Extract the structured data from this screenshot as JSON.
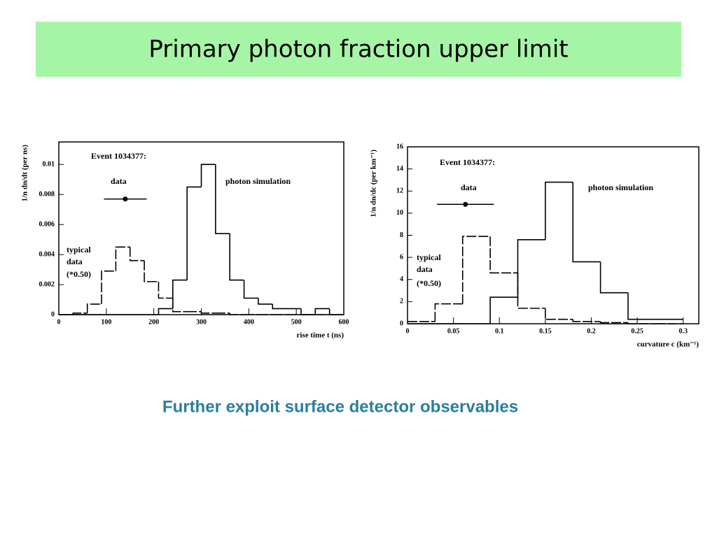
{
  "slide": {
    "title": "Primary photon fraction upper limit",
    "footer": "Further exploit surface detector observables"
  },
  "chart_data": [
    {
      "type": "histogram",
      "xlabel": "rise time t (ns)",
      "ylabel": "1/n dn/dt (per ns)",
      "annotations": [
        "Event 1034377:",
        "data",
        "photon simulation",
        "typical",
        "data",
        "(*0.50)"
      ],
      "bins": [
        0,
        30,
        60,
        90,
        120,
        150,
        180,
        210,
        240,
        270,
        300,
        330,
        360,
        390,
        420,
        450,
        480,
        510,
        540,
        570,
        600
      ],
      "series": [
        {
          "color": "#000000",
          "linestyle": "dashed",
          "values": [
            0,
            0.0001,
            0.0007,
            0.0029,
            0.0045,
            0.0036,
            0.0022,
            0.0011,
            0.0002,
            0.0002,
            0.0001,
            0.0001,
            0,
            0,
            0,
            0,
            0,
            0,
            0,
            0
          ]
        },
        {
          "color": "#000000",
          "linestyle": "solid",
          "values": [
            0,
            0,
            0,
            0,
            0,
            0,
            0,
            0.0004,
            0.0023,
            0.0085,
            0.01,
            0.0054,
            0.0023,
            0.0011,
            0.0007,
            0.0004,
            0.0004,
            0,
            0.0004,
            0
          ]
        }
      ],
      "points": {
        "x": [
          140
        ],
        "y": [
          0.0077
        ],
        "xerr": [
          45
        ]
      },
      "xlim": [
        0,
        600
      ],
      "ylim": [
        0,
        0.0115
      ],
      "xticks": [
        0,
        100,
        200,
        300,
        400,
        500,
        600
      ],
      "yticks": [
        0,
        0.002,
        0.004,
        0.006,
        0.008,
        0.01
      ]
    },
    {
      "type": "histogram",
      "xlabel": "curvature c (km⁻¹)",
      "ylabel": "1/n dn/dc (per km⁻¹)",
      "annotations": [
        "Event 1034377:",
        "data",
        "photon simulation",
        "typical",
        "data",
        "(*0.50)"
      ],
      "bins": [
        0,
        0.03,
        0.06,
        0.09,
        0.12,
        0.15,
        0.18,
        0.21,
        0.24,
        0.27,
        0.3
      ],
      "series": [
        {
          "color": "#000000",
          "linestyle": "dashed",
          "values": [
            0.2,
            1.8,
            7.9,
            4.6,
            1.4,
            0.4,
            0.2,
            0.1,
            0,
            0
          ]
        },
        {
          "color": "#000000",
          "linestyle": "solid",
          "values": [
            0,
            0,
            0,
            2.4,
            7.6,
            12.8,
            5.6,
            2.8,
            0.4,
            0.4
          ]
        }
      ],
      "points": {
        "x": [
          0.063
        ],
        "y": [
          10.8
        ],
        "xerr": [
          0.031
        ]
      },
      "xlim": [
        0,
        0.317
      ],
      "ylim": [
        0,
        16
      ],
      "xticks": [
        0,
        0.05,
        0.1,
        0.15,
        0.2,
        0.25,
        0.3
      ],
      "yticks": [
        0,
        2,
        4,
        6,
        8,
        10,
        12,
        14,
        16
      ]
    }
  ]
}
